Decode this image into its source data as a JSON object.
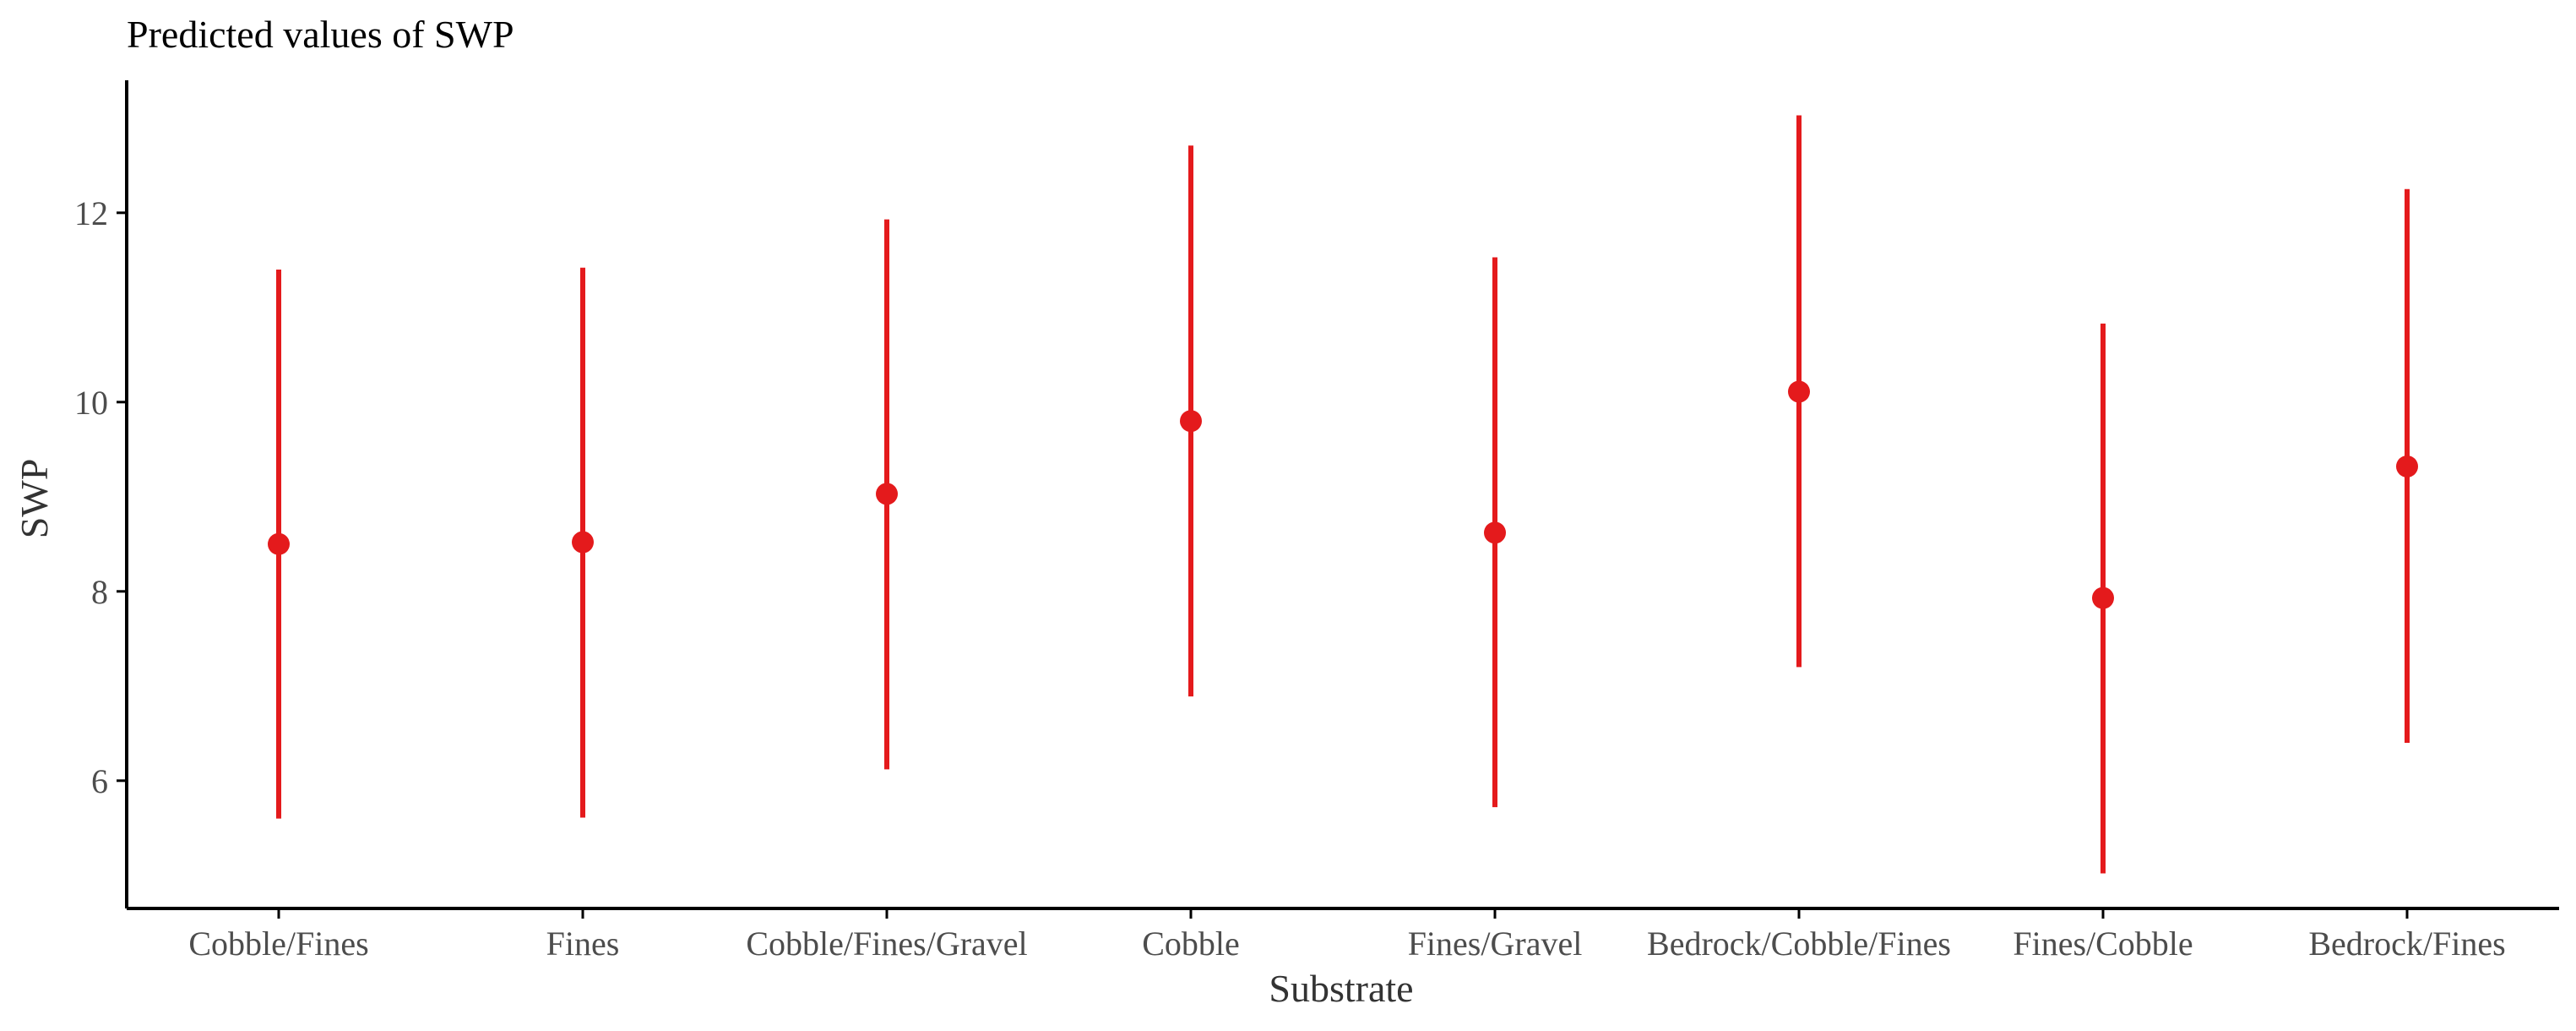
{
  "chart_data": {
    "type": "scatter",
    "title": "Predicted values of SWP",
    "xlabel": "Substrate",
    "ylabel": "SWP",
    "ylim": [
      4.65,
      13.4
    ],
    "yticks": [
      6,
      8,
      10,
      12
    ],
    "ytick_labels": [
      "6",
      "8",
      "10",
      "12"
    ],
    "categories": [
      "Cobble/Fines",
      "Fines",
      "Cobble/Fines/Gravel",
      "Cobble",
      "Fines/Gravel",
      "Bedrock/Cobble/Fines",
      "Fines/Cobble",
      "Bedrock/Fines"
    ],
    "series": [
      {
        "values": [
          8.5,
          8.52,
          9.03,
          9.8,
          8.62,
          10.11,
          7.93,
          9.32
        ],
        "lower": [
          5.6,
          5.61,
          6.12,
          6.89,
          5.72,
          7.2,
          5.02,
          6.4
        ],
        "upper": [
          11.4,
          11.42,
          11.93,
          12.71,
          11.53,
          13.03,
          10.83,
          12.25
        ],
        "color": "#e41a1c"
      }
    ],
    "grid": false,
    "legend": "none"
  }
}
